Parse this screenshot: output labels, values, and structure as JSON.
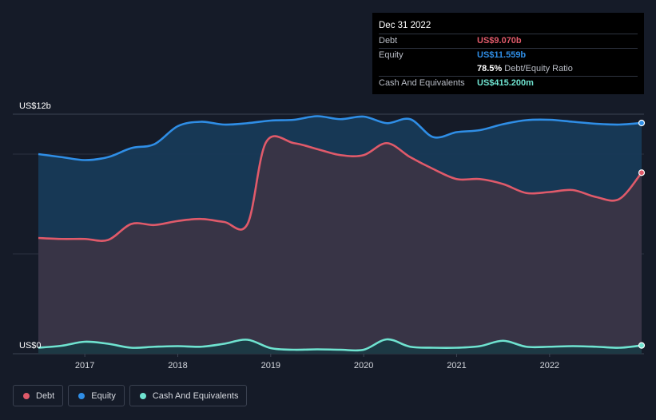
{
  "tooltip": {
    "date": "Dec 31 2022",
    "rows": [
      {
        "label": "Debt",
        "value": "US$9.070b",
        "color": "#e05a6a"
      },
      {
        "label": "Equity",
        "value": "US$11.559b",
        "color": "#2f8ee6"
      },
      {
        "label": "",
        "value": "78.5%",
        "suffix": "Debt/Equity Ratio",
        "color": "#ffffff"
      },
      {
        "label": "Cash And Equivalents",
        "value": "US$415.200m",
        "color": "#6fe3d0"
      }
    ]
  },
  "legend": [
    {
      "label": "Debt",
      "color": "#e05a6a"
    },
    {
      "label": "Equity",
      "color": "#2f8ee6"
    },
    {
      "label": "Cash And Equivalents",
      "color": "#6fe3d0"
    }
  ],
  "chart_data": {
    "type": "area",
    "y_unit": "US$ billions",
    "ylim": [
      0,
      12
    ],
    "y_tick_labels": [
      {
        "value": 12,
        "label": "US$12b"
      },
      {
        "value": 0,
        "label": "US$0"
      }
    ],
    "x_tick_labels": [
      "2017",
      "2018",
      "2019",
      "2020",
      "2021",
      "2022"
    ],
    "x_range": [
      2016.5,
      2022.99
    ],
    "grid": true,
    "series": [
      {
        "name": "Equity",
        "color": "#2f8ee6",
        "points": [
          [
            2016.5,
            10.0
          ],
          [
            2016.75,
            9.85
          ],
          [
            2017.0,
            9.7
          ],
          [
            2017.25,
            9.85
          ],
          [
            2017.5,
            10.3
          ],
          [
            2017.75,
            10.5
          ],
          [
            2018.0,
            11.4
          ],
          [
            2018.25,
            11.62
          ],
          [
            2018.5,
            11.48
          ],
          [
            2018.75,
            11.55
          ],
          [
            2019.0,
            11.68
          ],
          [
            2019.25,
            11.72
          ],
          [
            2019.5,
            11.9
          ],
          [
            2019.75,
            11.75
          ],
          [
            2020.0,
            11.88
          ],
          [
            2020.25,
            11.55
          ],
          [
            2020.5,
            11.75
          ],
          [
            2020.75,
            10.85
          ],
          [
            2021.0,
            11.1
          ],
          [
            2021.25,
            11.2
          ],
          [
            2021.5,
            11.5
          ],
          [
            2021.75,
            11.7
          ],
          [
            2022.0,
            11.72
          ],
          [
            2022.25,
            11.62
          ],
          [
            2022.5,
            11.52
          ],
          [
            2022.75,
            11.48
          ],
          [
            2022.99,
            11.559
          ]
        ]
      },
      {
        "name": "Debt",
        "color": "#e05a6a",
        "points": [
          [
            2016.5,
            5.8
          ],
          [
            2016.75,
            5.75
          ],
          [
            2017.0,
            5.75
          ],
          [
            2017.25,
            5.7
          ],
          [
            2017.5,
            6.5
          ],
          [
            2017.75,
            6.45
          ],
          [
            2018.0,
            6.65
          ],
          [
            2018.25,
            6.75
          ],
          [
            2018.5,
            6.6
          ],
          [
            2018.75,
            6.5
          ],
          [
            2018.95,
            10.6
          ],
          [
            2019.25,
            10.55
          ],
          [
            2019.5,
            10.25
          ],
          [
            2019.75,
            9.95
          ],
          [
            2020.0,
            9.95
          ],
          [
            2020.25,
            10.55
          ],
          [
            2020.5,
            9.85
          ],
          [
            2020.75,
            9.25
          ],
          [
            2021.0,
            8.75
          ],
          [
            2021.25,
            8.75
          ],
          [
            2021.5,
            8.5
          ],
          [
            2021.75,
            8.05
          ],
          [
            2022.0,
            8.1
          ],
          [
            2022.25,
            8.2
          ],
          [
            2022.5,
            7.85
          ],
          [
            2022.75,
            7.75
          ],
          [
            2022.99,
            9.07
          ]
        ]
      },
      {
        "name": "Cash And Equivalents",
        "color": "#6fe3d0",
        "points": [
          [
            2016.5,
            0.3
          ],
          [
            2016.75,
            0.4
          ],
          [
            2017.0,
            0.6
          ],
          [
            2017.25,
            0.5
          ],
          [
            2017.5,
            0.3
          ],
          [
            2017.75,
            0.35
          ],
          [
            2018.0,
            0.38
          ],
          [
            2018.25,
            0.35
          ],
          [
            2018.5,
            0.5
          ],
          [
            2018.75,
            0.7
          ],
          [
            2019.0,
            0.28
          ],
          [
            2019.25,
            0.2
          ],
          [
            2019.5,
            0.22
          ],
          [
            2019.75,
            0.2
          ],
          [
            2020.0,
            0.2
          ],
          [
            2020.25,
            0.72
          ],
          [
            2020.5,
            0.35
          ],
          [
            2020.75,
            0.3
          ],
          [
            2021.0,
            0.3
          ],
          [
            2021.25,
            0.38
          ],
          [
            2021.5,
            0.65
          ],
          [
            2021.75,
            0.35
          ],
          [
            2022.0,
            0.35
          ],
          [
            2022.25,
            0.38
          ],
          [
            2022.5,
            0.35
          ],
          [
            2022.75,
            0.3
          ],
          [
            2022.99,
            0.415
          ]
        ]
      }
    ]
  }
}
